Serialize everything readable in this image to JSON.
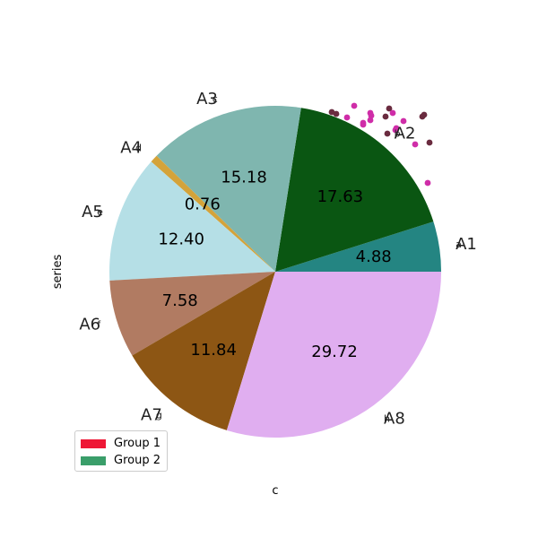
{
  "chart_data": {
    "type": "pie",
    "xlabel": "c",
    "ylabel": "series",
    "slices": [
      {
        "label": "A1",
        "sub": "a",
        "value": 4.88,
        "pct_text": "4.88",
        "color": "#248582"
      },
      {
        "label": "A2",
        "sub": "b",
        "value": 17.63,
        "pct_text": "17.63",
        "color": "#0a5612"
      },
      {
        "label": "A3",
        "sub": "c",
        "value": 15.18,
        "pct_text": "15.18",
        "color": "#7fb6af"
      },
      {
        "label": "A4",
        "sub": "d",
        "value": 0.76,
        "pct_text": "0.76",
        "color": "#d4a33a"
      },
      {
        "label": "A5",
        "sub": "e",
        "value": 12.4,
        "pct_text": "12.40",
        "color": "#b5dfe6"
      },
      {
        "label": "A6",
        "sub": "f",
        "value": 7.58,
        "pct_text": "7.58",
        "color": "#b17b62"
      },
      {
        "label": "A7",
        "sub": "g",
        "value": 11.84,
        "pct_text": "11.84",
        "color": "#8d5614"
      },
      {
        "label": "A8",
        "sub": "h",
        "value": 29.72,
        "pct_text": "29.72",
        "color": "#e0aef0"
      }
    ],
    "legend": {
      "placement": "bottom-left",
      "entries": [
        {
          "name": "Group 1",
          "color": "#ee1836"
        },
        {
          "name": "Group 2",
          "color": "#3a9e6a"
        }
      ]
    },
    "scatter_overlay": {
      "colors": [
        "#cf2da8",
        "#6a2b3f"
      ]
    }
  }
}
